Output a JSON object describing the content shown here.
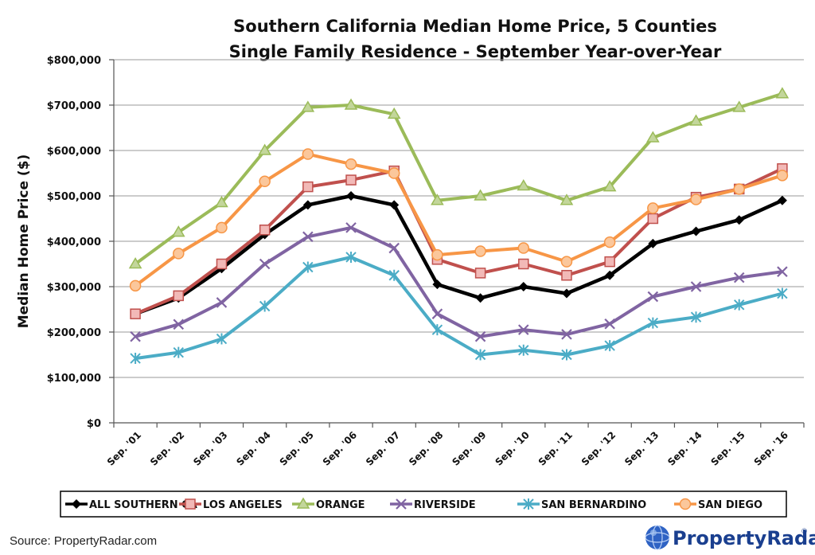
{
  "colors": {
    "all": "#000000",
    "la": "#c0504d",
    "orange": "#9bbb59",
    "riverside": "#8064a2",
    "sb": "#4bacc6",
    "sd": "#f79646",
    "brand": "#1a3f8f"
  },
  "footer": {
    "source": "Source: PropertyRadar.com",
    "brand_name": "PropertyRadar",
    "brand_mark": "®",
    "brand_icon": "globe-icon"
  },
  "chart_data": {
    "type": "line",
    "title": "Southern California Median Home Price, 5 Counties",
    "subtitle": "Single Family Residence - September Year-over-Year",
    "xlabel": "",
    "ylabel": "Median Home Price ($)",
    "ylim": [
      0,
      800000
    ],
    "yticks": [
      "$0",
      "$100,000",
      "$200,000",
      "$300,000",
      "$400,000",
      "$500,000",
      "$600,000",
      "$700,000",
      "$800,000"
    ],
    "grid": true,
    "legend_position": "bottom",
    "categories": [
      "Sep. '01",
      "Sep. '02",
      "Sep. '03",
      "Sep. '04",
      "Sep. '05",
      "Sep. '06",
      "Sep. '07",
      "Sep. '08",
      "Sep. '09",
      "Sep. '10",
      "Sep. '11",
      "Sep. '12",
      "Sep. '13",
      "Sep. '14",
      "Sep. '15",
      "Sep. '16"
    ],
    "series": [
      {
        "name": "ALL SOUTHERN CA",
        "color_key": "all",
        "marker": "diamond",
        "values": [
          240000,
          275000,
          340000,
          415000,
          480000,
          500000,
          480000,
          305000,
          275000,
          300000,
          285000,
          325000,
          395000,
          422000,
          447000,
          490000
        ]
      },
      {
        "name": "LOS ANGELES",
        "color_key": "la",
        "marker": "square",
        "values": [
          240000,
          280000,
          350000,
          425000,
          520000,
          535000,
          555000,
          360000,
          330000,
          350000,
          325000,
          355000,
          450000,
          497000,
          515000,
          560000
        ]
      },
      {
        "name": "ORANGE",
        "color_key": "orange",
        "marker": "triangle",
        "values": [
          350000,
          420000,
          485000,
          600000,
          695000,
          700000,
          680000,
          490000,
          500000,
          522000,
          490000,
          520000,
          628000,
          665000,
          695000,
          725000
        ]
      },
      {
        "name": "RIVERSIDE",
        "color_key": "riverside",
        "marker": "x",
        "values": [
          190000,
          217000,
          265000,
          350000,
          410000,
          430000,
          385000,
          240000,
          190000,
          205000,
          195000,
          218000,
          278000,
          300000,
          320000,
          333000
        ]
      },
      {
        "name": "SAN BERNARDINO",
        "color_key": "sb",
        "marker": "asterisk",
        "values": [
          142000,
          155000,
          185000,
          257000,
          343000,
          365000,
          325000,
          205000,
          150000,
          160000,
          150000,
          170000,
          220000,
          233000,
          260000,
          285000
        ]
      },
      {
        "name": "SAN DIEGO",
        "color_key": "sd",
        "marker": "circle",
        "values": [
          302000,
          373000,
          430000,
          532000,
          592000,
          570000,
          550000,
          370000,
          378000,
          385000,
          355000,
          398000,
          473000,
          492000,
          515000,
          545000
        ]
      }
    ]
  }
}
